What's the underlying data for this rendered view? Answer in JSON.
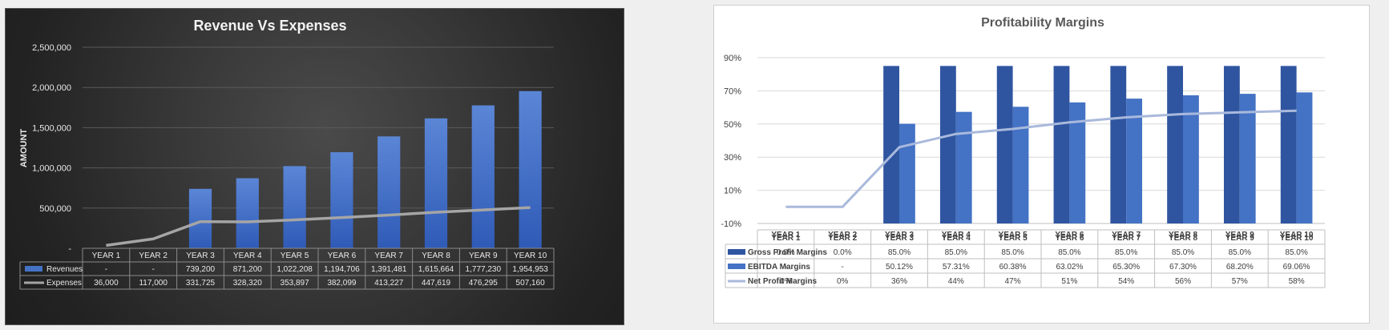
{
  "chart_data": [
    {
      "type": "bar+line",
      "title": "Revenue Vs Expenses",
      "ylabel": "AMOUNT",
      "ylim": [
        0,
        2500000
      ],
      "yticks": [
        {
          "value": 0,
          "label": "-"
        },
        {
          "value": 500000,
          "label": "500,000"
        },
        {
          "value": 1000000,
          "label": "1,000,000"
        },
        {
          "value": 1500000,
          "label": "1,500,000"
        },
        {
          "value": 2000000,
          "label": "2,000,000"
        },
        {
          "value": 2500000,
          "label": "2,500,000"
        }
      ],
      "categories": [
        "YEAR 1",
        "YEAR 2",
        "YEAR 3",
        "YEAR 4",
        "YEAR 5",
        "YEAR 6",
        "YEAR 7",
        "YEAR 8",
        "YEAR 9",
        "YEAR 10"
      ],
      "series": [
        {
          "name": "Revenues",
          "kind": "bar",
          "color": "#4472c4",
          "values": [
            0,
            0,
            739200,
            871200,
            1022208,
            1194706,
            1391481,
            1615664,
            1777230,
            1954953
          ],
          "labels": [
            "-",
            "-",
            "739,200",
            "871,200",
            "1,022,208",
            "1,194,706",
            "1,391,481",
            "1,615,664",
            "1,777,230",
            "1,954,953"
          ]
        },
        {
          "name": "Expenses",
          "kind": "line",
          "color": "#a5a5a5",
          "values": [
            36000,
            117000,
            331725,
            328320,
            353897,
            382099,
            413227,
            447619,
            476295,
            507160
          ],
          "labels": [
            "36,000",
            "117,000",
            "331,725",
            "328,320",
            "353,897",
            "382,099",
            "413,227",
            "447,619",
            "476,295",
            "507,160"
          ]
        }
      ],
      "grid": true,
      "legend": "data-table"
    },
    {
      "type": "bar+line",
      "title": "Profitability Margins",
      "ylim": [
        -10,
        90
      ],
      "yticks": [
        {
          "value": -10,
          "label": "-10%"
        },
        {
          "value": 10,
          "label": "10%"
        },
        {
          "value": 30,
          "label": "30%"
        },
        {
          "value": 50,
          "label": "50%"
        },
        {
          "value": 70,
          "label": "70%"
        },
        {
          "value": 90,
          "label": "90%"
        }
      ],
      "categories": [
        "YEAR 1",
        "YEAR 2",
        "YEAR 3",
        "YEAR 4",
        "YEAR 5",
        "YEAR 6",
        "YEAR 7",
        "YEAR 8",
        "YEAR 9",
        "YEAR 10"
      ],
      "series": [
        {
          "name": "Gross Profit Margins",
          "kind": "bar",
          "color": "#2f55a0",
          "values": [
            0,
            0,
            85,
            85,
            85,
            85,
            85,
            85,
            85,
            85
          ],
          "labels": [
            "0.0%",
            "0.0%",
            "85.0%",
            "85.0%",
            "85.0%",
            "85.0%",
            "85.0%",
            "85.0%",
            "85.0%",
            "85.0%"
          ]
        },
        {
          "name": "EBITDA Margins",
          "kind": "bar",
          "color": "#4472c4",
          "values": [
            null,
            null,
            50.12,
            57.31,
            60.38,
            63.02,
            65.3,
            67.3,
            68.2,
            69.06
          ],
          "labels": [
            "-",
            "-",
            "50.12%",
            "57.31%",
            "60.38%",
            "63.02%",
            "65.30%",
            "67.30%",
            "68.20%",
            "69.06%"
          ]
        },
        {
          "name": "Net Profit Margins",
          "kind": "line",
          "color": "#a9b9dc",
          "values": [
            0,
            0,
            36,
            44,
            47,
            51,
            54,
            56,
            57,
            58
          ],
          "labels": [
            "0%",
            "0%",
            "36%",
            "44%",
            "47%",
            "51%",
            "54%",
            "56%",
            "57%",
            "58%"
          ]
        }
      ],
      "grid": true,
      "legend": "data-table"
    }
  ]
}
